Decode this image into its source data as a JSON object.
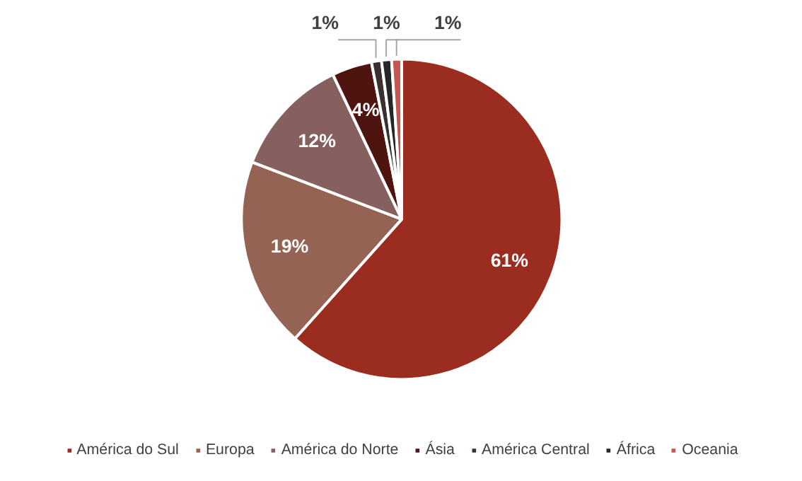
{
  "chart_data": {
    "type": "pie",
    "categories": [
      "América do Sul",
      "Europa",
      "América do Norte",
      "Ásia",
      "América Central",
      "África",
      "Oceania"
    ],
    "values": [
      61,
      19,
      12,
      4,
      1,
      1,
      1
    ],
    "colors": [
      "#9b2d20",
      "#946353",
      "#86605f",
      "#4d1410",
      "#3a3030",
      "#262626",
      "#c4584f"
    ],
    "value_labels": [
      "61%",
      "19%",
      "12%",
      "4%",
      "1%",
      "1%",
      "1%"
    ],
    "legend": "bottom"
  }
}
